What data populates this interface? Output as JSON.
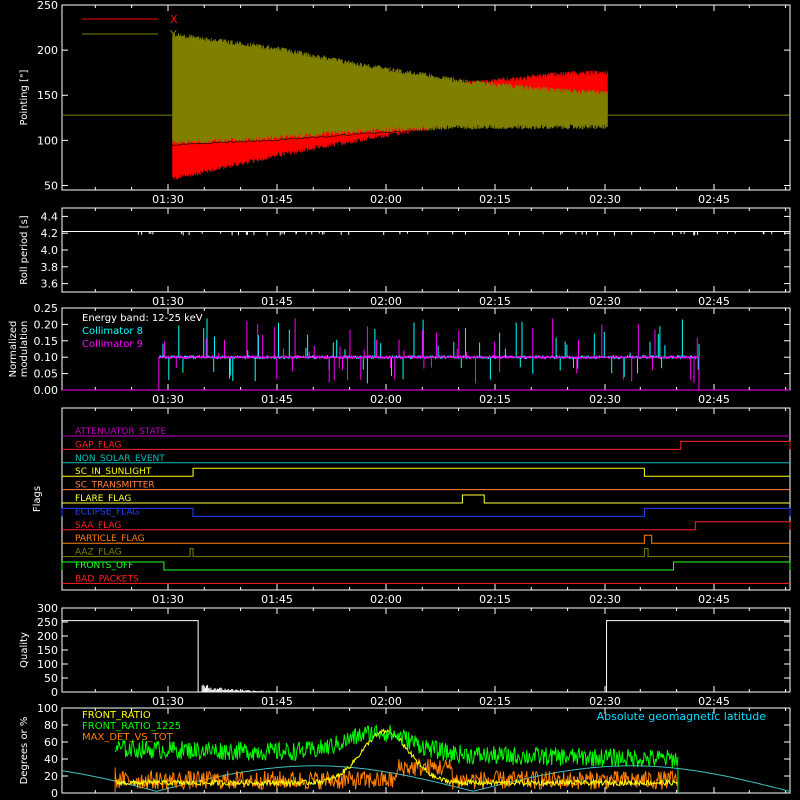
{
  "style": {
    "background": "#000000",
    "axis_color": "#ffffff",
    "text_color": "#ffffff"
  },
  "chart_data": [
    {
      "id": "pointing",
      "type": "line",
      "ylabel": "Pointing [\"]",
      "ylim": [
        45,
        250
      ],
      "yticks": [
        50,
        100,
        150,
        200,
        250
      ],
      "xticks": [
        "01:30",
        "01:45",
        "02:00",
        "02:15",
        "02:30",
        "02:45"
      ],
      "legend": {
        "placement": "top-left"
      },
      "series": [
        {
          "name": "X",
          "color": "#ff0000",
          "baseline": 128,
          "envelope": {
            "x": [
              0.095,
              0.2,
              0.3,
              0.4,
              0.5,
              0.55
            ],
            "low": [
              55,
              80,
              100,
              118,
              125,
              125
            ],
            "high": [
              125,
              132,
              148,
              165,
              176,
              178
            ]
          }
        },
        {
          "name": "Y",
          "color": "#808000",
          "baseline": 128,
          "envelope": {
            "x": [
              0.095,
              0.2,
              0.3,
              0.4,
              0.5,
              0.55
            ],
            "low": [
              95,
              100,
              108,
              112,
              112,
              112
            ],
            "high": [
              220,
              205,
              185,
              168,
              158,
              155
            ]
          }
        }
      ]
    },
    {
      "id": "roll",
      "type": "line",
      "ylabel": "Roll period [s]",
      "ylim": [
        3.5,
        4.5
      ],
      "yticks": [
        "3.6",
        "3.8",
        "4.0",
        "4.2",
        "4.4"
      ],
      "xticks": [
        "01:30",
        "01:45",
        "02:00",
        "02:15",
        "02:30",
        "02:45"
      ],
      "series": [
        {
          "color": "#ffffff",
          "value": 4.22
        }
      ]
    },
    {
      "id": "modulation",
      "type": "line",
      "ylabel": "Normalized modulation",
      "ylim": [
        0,
        0.25
      ],
      "yticks": [
        "0.00",
        "0.05",
        "0.10",
        "0.15",
        "0.20",
        "0.25"
      ],
      "xticks": [
        "01:30",
        "01:45",
        "02:00",
        "02:15",
        "02:30",
        "02:45"
      ],
      "annotation": "Energy band: 12-25 keV",
      "series": [
        {
          "name": "Collimator 8",
          "color": "#00ffff",
          "baseline": 0.1
        },
        {
          "name": "Collimator 9",
          "color": "#ff00ff",
          "baseline": 0.1
        }
      ],
      "active_range": [
        0.0,
        0.875
      ]
    },
    {
      "id": "flags",
      "type": "line",
      "ylabel": "Flags",
      "xticks": [
        "01:30",
        "01:45",
        "02:00",
        "02:15",
        "02:30",
        "02:45"
      ],
      "series": [
        {
          "name": "ATTENUATOR_STATE",
          "color": "#c000c0",
          "steps": []
        },
        {
          "name": "GAP_FLAG",
          "color": "#ff2020",
          "steps": [
            [
              0.85,
              1.0
            ]
          ]
        },
        {
          "name": "NON_SOLAR_EVENT",
          "color": "#00c0c0",
          "steps": []
        },
        {
          "name": "SC_IN_SUNLIGHT",
          "color": "#ffff00",
          "steps": [
            [
              0.18,
              0.8
            ]
          ]
        },
        {
          "name": "SC_TRANSMITTER",
          "color": "#ff8040",
          "steps": []
        },
        {
          "name": "FLARE_FLAG",
          "color": "#ffff40",
          "steps": [
            [
              0.55,
              0.58
            ]
          ]
        },
        {
          "name": "ECLIPSE_FLAG",
          "color": "#2040ff",
          "steps": [
            [
              0.0,
              0.18
            ],
            [
              0.8,
              1.0
            ]
          ]
        },
        {
          "name": "SAA_FLAG",
          "color": "#ff2020",
          "steps": [
            [
              0.87,
              1.0
            ]
          ]
        },
        {
          "name": "PARTICLE_FLAG",
          "color": "#ff8000",
          "steps": [
            [
              0.8,
              0.81
            ]
          ]
        },
        {
          "name": "AAZ_FLAG",
          "color": "#808000",
          "steps": [
            [
              0.176,
              0.18
            ],
            [
              0.8,
              0.805
            ]
          ]
        },
        {
          "name": "FRONTS_OFF",
          "color": "#20ff20",
          "steps": [
            [
              0.0,
              0.14
            ],
            [
              0.84,
              1.0
            ]
          ]
        },
        {
          "name": "BAD_PACKETS",
          "color": "#ff2020",
          "steps": []
        }
      ]
    },
    {
      "id": "quality",
      "type": "line",
      "ylabel": "Quality",
      "ylim": [
        0,
        300
      ],
      "yticks": [
        "0",
        "50",
        "100",
        "150",
        "200",
        "250",
        "300"
      ],
      "xticks": [
        "01:30",
        "01:45",
        "02:00",
        "02:15",
        "02:30",
        "02:45"
      ],
      "series": [
        {
          "color": "#ffffff",
          "high": 255
        }
      ]
    },
    {
      "id": "ratios",
      "type": "line",
      "ylabel": "Degrees or %",
      "ylim": [
        0,
        100
      ],
      "yticks": [
        "0",
        "20",
        "40",
        "60",
        "80",
        "100"
      ],
      "annotation": "Absolute geomagnetic latitude",
      "series": [
        {
          "name": "FRONT_RATIO",
          "color": "#ffff00"
        },
        {
          "name": "FRONT_RATIO_1225",
          "color": "#00ff00"
        },
        {
          "name": "MAX_DET_VS_TOT",
          "color": "#ff8000"
        },
        {
          "name": "Absolute geomagnetic latitude",
          "color": "#40c0c0"
        }
      ]
    }
  ]
}
